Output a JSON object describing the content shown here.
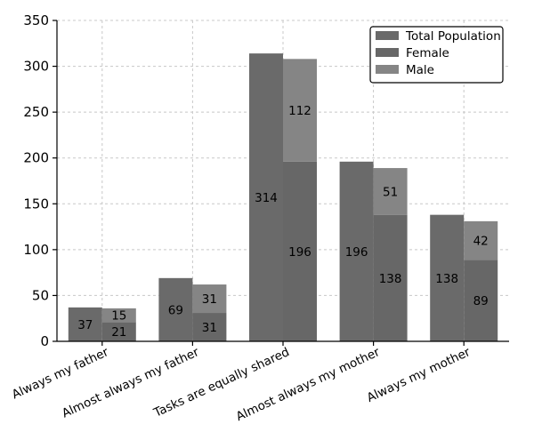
{
  "chart_data": {
    "type": "bar",
    "title": "",
    "xlabel": "",
    "ylabel": "",
    "ylim": [
      0,
      350
    ],
    "yticks": [
      0,
      50,
      100,
      150,
      200,
      250,
      300,
      350
    ],
    "grid": true,
    "legend_position": "top-right",
    "categories": [
      "Always my father",
      "Almost always my father",
      "Tasks are equally shared",
      "Almost always my mother",
      "Always my mother"
    ],
    "series": [
      {
        "name": "Total Population",
        "values": [
          37,
          69,
          314,
          196,
          138
        ],
        "color": "#6a6a6a"
      },
      {
        "name": "Female",
        "values": [
          21,
          31,
          196,
          138,
          89
        ],
        "color": "#676767",
        "stack": "gender"
      },
      {
        "name": "Male",
        "values": [
          15,
          31,
          112,
          51,
          42
        ],
        "color": "#858585",
        "stack": "gender"
      }
    ]
  }
}
